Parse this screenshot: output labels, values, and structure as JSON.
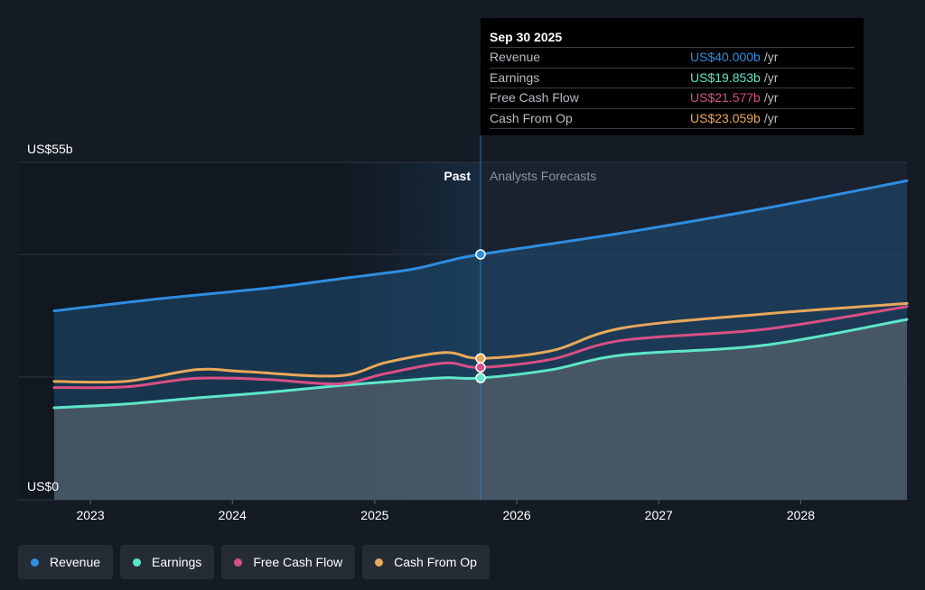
{
  "chart_data": {
    "type": "area",
    "y_axis": {
      "top_label": "US$55b",
      "bottom_label": "US$0",
      "ylim": [
        0,
        55
      ]
    },
    "x_axis": {
      "ticks": [
        "2023",
        "2024",
        "2025",
        "2026",
        "2027",
        "2028"
      ],
      "range": [
        "2022-09-30",
        "2028-09-30"
      ]
    },
    "regions": {
      "past_label": "Past",
      "forecast_label": "Analysts Forecasts",
      "divider_date": "2025-09-30"
    },
    "series": [
      {
        "name": "Revenue",
        "color": "#2e8de0",
        "fill": true,
        "points": [
          [
            "2022-09-30",
            30.8
          ],
          [
            "2023-06-30",
            32.8
          ],
          [
            "2024-03-31",
            34.5
          ],
          [
            "2024-09-30",
            36.0
          ],
          [
            "2025-03-31",
            37.5
          ],
          [
            "2025-06-30",
            38.8
          ],
          [
            "2025-09-30",
            40.0
          ],
          [
            "2026-09-30",
            43.5
          ],
          [
            "2027-09-30",
            47.5
          ],
          [
            "2028-09-30",
            52.0
          ]
        ]
      },
      {
        "name": "Earnings",
        "color": "#5ee6c8",
        "fill": true,
        "points": [
          [
            "2022-09-30",
            15.0
          ],
          [
            "2023-03-31",
            15.6
          ],
          [
            "2023-09-30",
            16.6
          ],
          [
            "2024-03-31",
            17.5
          ],
          [
            "2024-09-30",
            18.6
          ],
          [
            "2025-03-31",
            19.5
          ],
          [
            "2025-06-30",
            19.9
          ],
          [
            "2025-09-30",
            19.853
          ],
          [
            "2026-03-31",
            21.2
          ],
          [
            "2026-09-30",
            23.6
          ],
          [
            "2027-09-30",
            25.2
          ],
          [
            "2028-09-30",
            29.4
          ]
        ]
      },
      {
        "name": "Free Cash Flow",
        "color": "#d94f86",
        "fill": false,
        "points": [
          [
            "2022-09-30",
            18.3
          ],
          [
            "2023-03-31",
            18.4
          ],
          [
            "2023-09-30",
            19.8
          ],
          [
            "2024-03-31",
            19.6
          ],
          [
            "2024-09-30",
            18.9
          ],
          [
            "2025-01-31",
            20.6
          ],
          [
            "2025-06-30",
            22.3
          ],
          [
            "2025-09-30",
            21.577
          ],
          [
            "2026-03-31",
            22.9
          ],
          [
            "2026-09-30",
            26.0
          ],
          [
            "2027-09-30",
            27.8
          ],
          [
            "2028-09-30",
            31.5
          ]
        ]
      },
      {
        "name": "Cash From Op",
        "color": "#e8a85a",
        "fill": false,
        "points": [
          [
            "2022-09-30",
            19.3
          ],
          [
            "2023-03-31",
            19.3
          ],
          [
            "2023-09-30",
            21.2
          ],
          [
            "2024-01-31",
            20.9
          ],
          [
            "2024-09-30",
            20.2
          ],
          [
            "2025-01-31",
            22.4
          ],
          [
            "2025-06-30",
            24.0
          ],
          [
            "2025-09-30",
            23.059
          ],
          [
            "2026-03-31",
            24.3
          ],
          [
            "2026-09-30",
            28.0
          ],
          [
            "2027-09-30",
            30.3
          ],
          [
            "2028-09-30",
            32.0
          ]
        ]
      }
    ],
    "highlight_date": "2025-09-30",
    "grid": true
  },
  "tooltip": {
    "date": "Sep 30 2025",
    "rows": [
      {
        "label": "Revenue",
        "value": "US$40.000b",
        "unit": "/yr",
        "color": "#2e8de0"
      },
      {
        "label": "Earnings",
        "value": "US$19.853b",
        "unit": "/yr",
        "color": "#5ee6c8"
      },
      {
        "label": "Free Cash Flow",
        "value": "US$21.577b",
        "unit": "/yr",
        "color": "#d94f86"
      },
      {
        "label": "Cash From Op",
        "value": "US$23.059b",
        "unit": "/yr",
        "color": "#e8a85a"
      }
    ]
  },
  "legend": [
    {
      "label": "Revenue",
      "color": "#2e8de0"
    },
    {
      "label": "Earnings",
      "color": "#5ee6c8"
    },
    {
      "label": "Free Cash Flow",
      "color": "#d94f86"
    },
    {
      "label": "Cash From Op",
      "color": "#e8a85a"
    }
  ]
}
